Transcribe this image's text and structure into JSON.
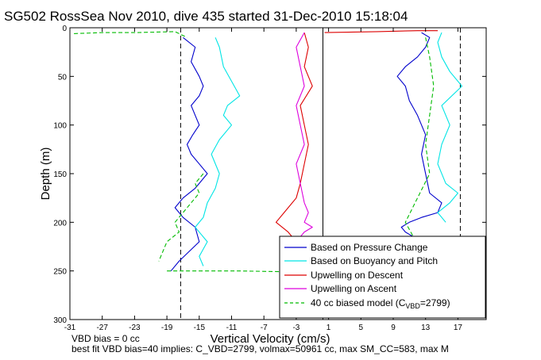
{
  "chart_data": {
    "type": "line",
    "title": "SG502 RossSea Nov 2010, dive 435 started 31-Dec-2010 15:18:04",
    "xlabel": "Vertical Velocity (cm/s)",
    "ylabel": "Depth (m)",
    "xlim": [
      -31,
      20.5
    ],
    "ylim": [
      300,
      0
    ],
    "y_reversed": true,
    "xticks": [
      "-31",
      "-27",
      "-23",
      "-19",
      "-15",
      "-11",
      "-7",
      "-3",
      "1",
      "5",
      "9",
      "13",
      "17"
    ],
    "yticks": [
      "0",
      "50",
      "100",
      "150",
      "200",
      "250",
      "300"
    ],
    "grid": false,
    "legend_position": "bottom-right",
    "reference_lines": [
      {
        "x": -17.3,
        "style": "dashed"
      },
      {
        "x": 0.3,
        "style": "solid"
      },
      {
        "x": 17.3,
        "style": "dashed"
      }
    ],
    "notes": [
      "VBD bias = 0 cc",
      "best fit VBD bias=40 implies: C_VBD=2799, volmax=50961 cc, max SM_CC=583, max M"
    ],
    "series": [
      {
        "name": "Based on Pressure Change",
        "color": "#0000cc",
        "style": "solid",
        "segments": [
          {
            "x": [
              -17.0,
              -15.5,
              -16.0,
              -15.0,
              -14.5,
              -15.0,
              -16.0,
              -15.5,
              -15.0,
              -15.8,
              -16.5,
              -16.0,
              -15.0,
              -14.0,
              -15.5,
              -17.0,
              -18.0,
              -17.0,
              -15.5,
              -15.0,
              -17.5,
              -18.5
            ],
            "y": [
              10,
              20,
              35,
              50,
              60,
              70,
              80,
              90,
              100,
              110,
              120,
              130,
              140,
              150,
              165,
              175,
              185,
              195,
              205,
              220,
              240,
              250
            ]
          },
          {
            "x": [
              12.5,
              13.5,
              13.0,
              12.0,
              10.5,
              9.5,
              10.5,
              11.0,
              12.0,
              13.0,
              12.5,
              13.0,
              13.5,
              15.0,
              14.5,
              12.5,
              11.0,
              10.0,
              10.5,
              11.5
            ],
            "y": [
              5,
              10,
              20,
              30,
              40,
              50,
              60,
              75,
              90,
              110,
              130,
              150,
              170,
              180,
              190,
              195,
              200,
              205,
              210,
              215
            ]
          }
        ]
      },
      {
        "name": "Based on Buoyancy and Pitch",
        "color": "#00e5e5",
        "style": "solid",
        "segments": [
          {
            "x": [
              -13.0,
              -12.5,
              -12.0,
              -11.0,
              -10.0,
              -11.5,
              -12.0,
              -11.0,
              -12.5,
              -13.5,
              -12.5,
              -13.0,
              -14.0,
              -14.5,
              -15.5,
              -14.0,
              -15.0,
              -14.5
            ],
            "y": [
              10,
              20,
              40,
              55,
              70,
              80,
              90,
              100,
              115,
              130,
              150,
              165,
              180,
              195,
              205,
              220,
              235,
              245
            ]
          },
          {
            "x": [
              15.0,
              14.5,
              15.0,
              16.0,
              17.5,
              15.0,
              16.0,
              15.0,
              14.5,
              15.5,
              17.0,
              16.0,
              14.5,
              15.5
            ],
            "y": [
              5,
              15,
              30,
              45,
              60,
              80,
              100,
              120,
              140,
              160,
              170,
              180,
              190,
              200
            ]
          }
        ]
      },
      {
        "name": "Upwelling on Descent",
        "color": "#dd0000",
        "style": "solid",
        "segments": [
          {
            "x": [
              -2.0,
              -1.5,
              -2.0,
              -1.0,
              -2.5,
              -2.0,
              -1.5,
              -2.0,
              -2.5,
              -3.0,
              -4.5,
              -5.5,
              -4.0,
              -3.0,
              -1.5,
              -0.5,
              0.5
            ],
            "y": [
              5,
              20,
              40,
              60,
              80,
              100,
              120,
              140,
              160,
              175,
              190,
              200,
              210,
              220,
              235,
              245,
              250
            ]
          },
          {
            "x": [
              0.5,
              7.0,
              12.0,
              14.5
            ],
            "y": [
              5,
              4,
              3,
              3
            ]
          }
        ]
      },
      {
        "name": "Upwelling on Ascent",
        "color": "#dd00dd",
        "style": "solid",
        "segments": [
          {
            "x": [
              -2.0,
              -3.0,
              -2.5,
              -2.0,
              -3.0,
              -2.5,
              -2.0,
              -3.0,
              -2.5,
              -2.0,
              -1.5,
              -2.0,
              -1.0,
              -2.0,
              -2.5
            ],
            "y": [
              5,
              20,
              40,
              60,
              80,
              100,
              120,
              140,
              160,
              180,
              190,
              200,
              205,
              210,
              215
            ]
          }
        ]
      },
      {
        "name": "40 cc biased model (C_VBD=2799)",
        "color": "#00bb00",
        "style": "dashed",
        "segments": [
          {
            "x": [
              -30.5,
              -27.0,
              -23.0,
              -18.0,
              -16.5
            ],
            "y": [
              6,
              5,
              5,
              4,
              10
            ]
          },
          {
            "x": [
              -14.5,
              -15.5,
              -15.0,
              -16.0,
              -17.0,
              -18.0,
              -17.5,
              -19.0,
              -20.0
            ],
            "y": [
              150,
              160,
              170,
              180,
              190,
              200,
              210,
              220,
              240
            ]
          },
          {
            "x": [
              -19.0,
              -16.0,
              -10.0,
              -3.0,
              0.5
            ],
            "y": [
              250,
              250,
              250,
              251,
              250
            ]
          },
          {
            "x": [
              13.0,
              13.5,
              14.0,
              13.5,
              13.0,
              13.5,
              10.5,
              11.5
            ],
            "y": [
              10,
              30,
              60,
              90,
              120,
              150,
              200,
              215
            ]
          }
        ]
      }
    ]
  },
  "legend": {
    "entries": [
      "Based on Pressure Change",
      "Based on Buoyancy and Pitch",
      "Upwelling on Descent",
      "Upwelling on Ascent"
    ],
    "model_prefix": "40 cc biased model (C",
    "model_sub": "VBD",
    "model_suffix": "=2799)"
  }
}
